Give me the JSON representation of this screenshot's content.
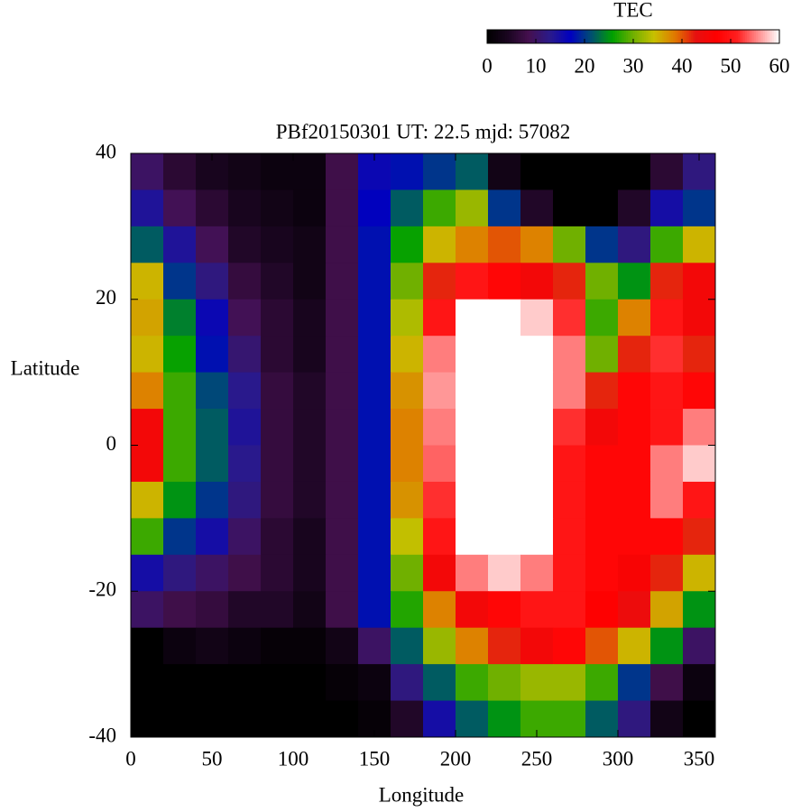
{
  "chart_data": {
    "type": "heatmap",
    "title": "PBf20150301  UT: 22.5  mjd: 57082",
    "xlabel": "Longitude",
    "ylabel": "Latitude",
    "colorbar_label": "TEC",
    "xbins": [
      0,
      20,
      40,
      60,
      80,
      100,
      120,
      140,
      160,
      180,
      200,
      220,
      240,
      260,
      280,
      300,
      320,
      340,
      360
    ],
    "ybins": [
      40,
      35,
      30,
      25,
      20,
      15,
      10,
      5,
      0,
      -5,
      -10,
      -15,
      -20,
      -25,
      -30,
      -35,
      -40
    ],
    "z": [
      [
        10,
        6,
        4,
        3,
        2,
        2,
        8,
        16,
        18,
        20,
        22,
        3,
        0,
        0,
        0,
        0,
        6,
        12
      ],
      [
        14,
        9,
        6,
        4,
        3,
        2,
        8,
        17,
        22,
        28,
        32,
        20,
        5,
        0,
        0,
        5,
        15,
        20
      ],
      [
        22,
        14,
        9,
        5,
        4,
        3,
        8,
        18,
        26,
        35,
        38,
        40,
        38,
        30,
        20,
        12,
        28,
        35
      ],
      [
        35,
        20,
        12,
        7,
        5,
        3,
        8,
        18,
        30,
        42,
        50,
        48,
        45,
        42,
        30,
        25,
        42,
        45
      ],
      [
        36,
        24,
        16,
        9,
        6,
        4,
        8,
        18,
        33,
        50,
        60,
        60,
        58,
        52,
        28,
        38,
        50,
        45
      ],
      [
        35,
        26,
        18,
        11,
        6,
        4,
        8,
        18,
        35,
        55,
        60,
        60,
        60,
        55,
        30,
        42,
        52,
        42
      ],
      [
        38,
        28,
        21,
        13,
        7,
        5,
        8,
        18,
        37,
        56,
        60,
        60,
        60,
        55,
        42,
        48,
        50,
        48
      ],
      [
        45,
        28,
        22,
        14,
        7,
        5,
        8,
        18,
        38,
        55,
        60,
        60,
        60,
        52,
        45,
        48,
        50,
        55
      ],
      [
        45,
        28,
        22,
        13,
        7,
        5,
        8,
        18,
        38,
        54,
        60,
        60,
        60,
        50,
        48,
        48,
        55,
        58
      ],
      [
        35,
        25,
        20,
        12,
        7,
        5,
        8,
        18,
        37,
        52,
        60,
        60,
        60,
        50,
        48,
        48,
        55,
        50
      ],
      [
        28,
        20,
        15,
        10,
        6,
        4,
        8,
        18,
        34,
        50,
        60,
        60,
        60,
        50,
        48,
        48,
        48,
        42
      ],
      [
        15,
        12,
        10,
        8,
        6,
        4,
        8,
        18,
        30,
        45,
        55,
        58,
        55,
        50,
        48,
        46,
        42,
        35
      ],
      [
        10,
        8,
        7,
        5,
        5,
        3,
        8,
        18,
        27,
        38,
        45,
        48,
        50,
        50,
        47,
        44,
        36,
        25
      ],
      [
        0,
        2,
        3,
        2,
        1,
        1,
        3,
        10,
        22,
        32,
        38,
        42,
        45,
        48,
        40,
        35,
        25,
        10
      ],
      [
        0,
        0,
        0,
        0,
        0,
        0,
        1,
        2,
        12,
        22,
        28,
        30,
        32,
        32,
        28,
        20,
        8,
        2
      ],
      [
        0,
        0,
        0,
        0,
        0,
        0,
        0,
        1,
        5,
        15,
        22,
        25,
        28,
        28,
        22,
        12,
        3,
        0
      ]
    ],
    "xlim": [
      0,
      360
    ],
    "ylim": [
      -40,
      40
    ],
    "xticks": [
      0,
      50,
      100,
      150,
      200,
      250,
      300,
      350
    ],
    "yticks": [
      -40,
      -20,
      0,
      20,
      40
    ],
    "clim": [
      0,
      60
    ],
    "cticks": [
      0,
      10,
      20,
      30,
      40,
      50,
      60
    ],
    "colormap": [
      "#000000",
      "#1a0520",
      "#45104f",
      "#2a1a8a",
      "#0000c0",
      "#005070",
      "#00a000",
      "#70b000",
      "#c8c000",
      "#e07800",
      "#e61010",
      "#ff0000",
      "#ff2020",
      "#ff9090",
      "#ffffff"
    ]
  }
}
